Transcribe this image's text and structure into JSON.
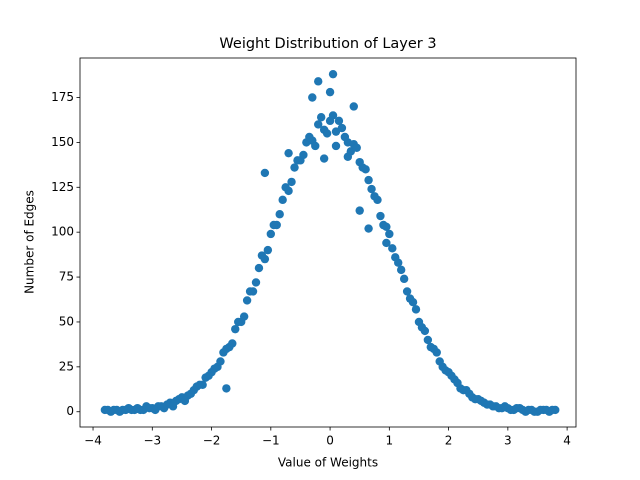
{
  "chart_data": {
    "type": "scatter",
    "title": "Weight Distribution of Layer 3",
    "x_label": "Value of Weights",
    "y_label": "Number of Edges",
    "color": "#1f77b4",
    "xlim": [
      -4.22,
      4.15
    ],
    "ylim": [
      -8.5,
      197
    ],
    "xticks": [
      {
        "value": -4,
        "label": "−4"
      },
      {
        "value": -3,
        "label": "−3"
      },
      {
        "value": -2,
        "label": "−2"
      },
      {
        "value": -1,
        "label": "−1"
      },
      0,
      1,
      2,
      3,
      4
    ],
    "yticks": [
      0,
      25,
      50,
      75,
      100,
      125,
      150,
      175
    ],
    "x": [
      -3.8,
      -3.7,
      -3.6,
      -3.5,
      -3.4,
      -3.3,
      -3.2,
      -3.1,
      -3.0,
      -2.9,
      -2.8,
      -2.7,
      -2.6,
      -2.5,
      -2.4,
      -2.3,
      -2.2,
      -2.1,
      -2.0,
      -1.9,
      -1.8,
      -1.7,
      -1.6,
      -1.5,
      -1.4,
      -1.3,
      -1.2,
      -1.1,
      -1.0,
      -0.9,
      -0.8,
      -0.7,
      -0.6,
      -0.5,
      -0.4,
      -0.3,
      -0.2,
      -0.1,
      0.0,
      0.1,
      0.2,
      0.3,
      0.4,
      0.5,
      0.6,
      0.7,
      0.8,
      0.9,
      1.0,
      1.1,
      1.2,
      1.3,
      1.4,
      1.5,
      1.6,
      1.7,
      1.8,
      1.9,
      2.0,
      2.1,
      2.2,
      2.3,
      2.4,
      2.5,
      2.6,
      2.7,
      2.8,
      2.9,
      3.0,
      3.1,
      3.2,
      3.3,
      3.4,
      3.5,
      3.6,
      3.7,
      3.8,
      -3.75,
      -3.65,
      -3.55,
      -3.45,
      -3.35,
      -3.25,
      -3.15,
      -3.05,
      -2.95,
      -2.85,
      -2.75,
      -2.65,
      -2.55,
      -2.45,
      -2.35,
      -2.25,
      -2.15,
      -2.05,
      -1.95,
      -1.85,
      -1.75,
      -1.65,
      -1.55,
      -1.45,
      -1.35,
      -1.25,
      -1.15,
      -1.05,
      -0.95,
      -0.85,
      -0.75,
      -0.65,
      -0.55,
      -0.45,
      -0.35,
      -0.25,
      -0.15,
      -0.05,
      0.05,
      0.15,
      0.25,
      0.35,
      0.45,
      0.55,
      0.65,
      0.75,
      0.85,
      0.95,
      1.05,
      1.15,
      1.25,
      1.35,
      1.45,
      1.55,
      1.65,
      1.75,
      1.85,
      1.95,
      2.05,
      2.15,
      2.25,
      2.35,
      2.45,
      2.55,
      2.65,
      2.75,
      2.85,
      2.95,
      3.05,
      3.15,
      3.25,
      3.35,
      3.45,
      3.55,
      3.65,
      3.75,
      0.05,
      -0.2,
      0.0,
      -1.1,
      -1.75,
      0.5,
      0.65,
      0.95,
      -0.7,
      0.3,
      -0.3,
      0.4,
      0.1,
      -0.1
    ],
    "values": [
      1,
      0,
      1,
      1,
      2,
      1,
      1,
      3,
      2,
      3,
      2,
      5,
      6,
      8,
      9,
      12,
      15,
      19,
      22,
      25,
      33,
      36,
      46,
      50,
      62,
      67,
      80,
      85,
      99,
      104,
      118,
      123,
      136,
      140,
      150,
      151,
      160,
      157,
      162,
      156,
      158,
      150,
      149,
      139,
      135,
      124,
      118,
      104,
      99,
      86,
      79,
      67,
      61,
      50,
      45,
      36,
      33,
      25,
      22,
      18,
      13,
      12,
      8,
      7,
      5,
      4,
      3,
      2,
      2,
      1,
      2,
      0,
      1,
      0,
      1,
      0,
      1,
      1,
      1,
      0,
      1,
      1,
      2,
      1,
      2,
      1,
      3,
      4,
      3,
      7,
      6,
      10,
      14,
      15,
      20,
      24,
      28,
      35,
      38,
      50,
      53,
      67,
      72,
      87,
      90,
      104,
      110,
      125,
      128,
      140,
      143,
      153,
      148,
      164,
      155,
      165,
      162,
      153,
      145,
      147,
      136,
      129,
      120,
      109,
      103,
      91,
      83,
      74,
      63,
      57,
      47,
      40,
      35,
      28,
      23,
      20,
      16,
      12,
      10,
      7,
      6,
      4,
      3,
      2,
      3,
      1,
      2,
      1,
      1,
      0,
      1,
      1,
      1,
      188,
      184,
      178,
      133,
      13,
      112,
      102,
      94,
      144,
      142,
      175,
      170,
      148,
      141
    ]
  }
}
